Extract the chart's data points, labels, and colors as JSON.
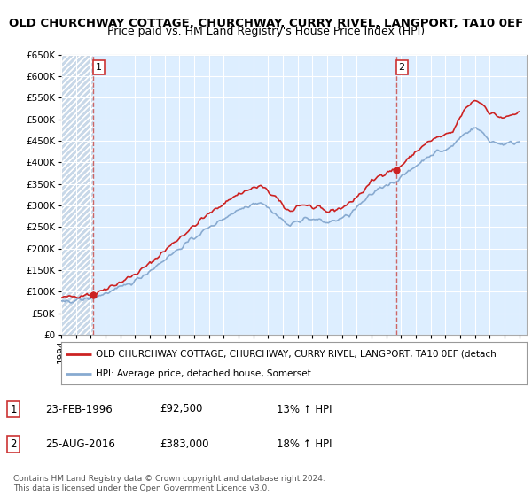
{
  "title": "OLD CHURCHWAY COTTAGE, CHURCHWAY, CURRY RIVEL, LANGPORT, TA10 0EF",
  "subtitle": "Price paid vs. HM Land Registry's House Price Index (HPI)",
  "ylim": [
    0,
    650000
  ],
  "yticks": [
    0,
    50000,
    100000,
    150000,
    200000,
    250000,
    300000,
    350000,
    400000,
    450000,
    500000,
    550000,
    600000,
    650000
  ],
  "background_color": "#ddeeff",
  "legend_label_red": "OLD CHURCHWAY COTTAGE, CHURCHWAY, CURRY RIVEL, LANGPORT, TA10 0EF (detach",
  "legend_label_blue": "HPI: Average price, detached house, Somerset",
  "footnote": "Contains HM Land Registry data © Crown copyright and database right 2024.\nThis data is licensed under the Open Government Licence v3.0.",
  "sale1_date": "23-FEB-1996",
  "sale1_price": 92500,
  "sale1_hpi": "13% ↑ HPI",
  "sale2_date": "25-AUG-2016",
  "sale2_price": 383000,
  "sale2_hpi": "18% ↑ HPI",
  "sale1_x": 1996.14,
  "sale2_x": 2016.65,
  "xtick_years": [
    1994,
    1995,
    1996,
    1997,
    1998,
    1999,
    2000,
    2001,
    2002,
    2003,
    2004,
    2005,
    2006,
    2007,
    2008,
    2009,
    2010,
    2011,
    2012,
    2013,
    2014,
    2015,
    2016,
    2017,
    2018,
    2019,
    2020,
    2021,
    2022,
    2023,
    2024,
    2025
  ],
  "title_fontsize": 9.5,
  "subtitle_fontsize": 9,
  "tick_fontsize": 7.5,
  "red_color": "#cc2222",
  "blue_color": "#88aad0"
}
